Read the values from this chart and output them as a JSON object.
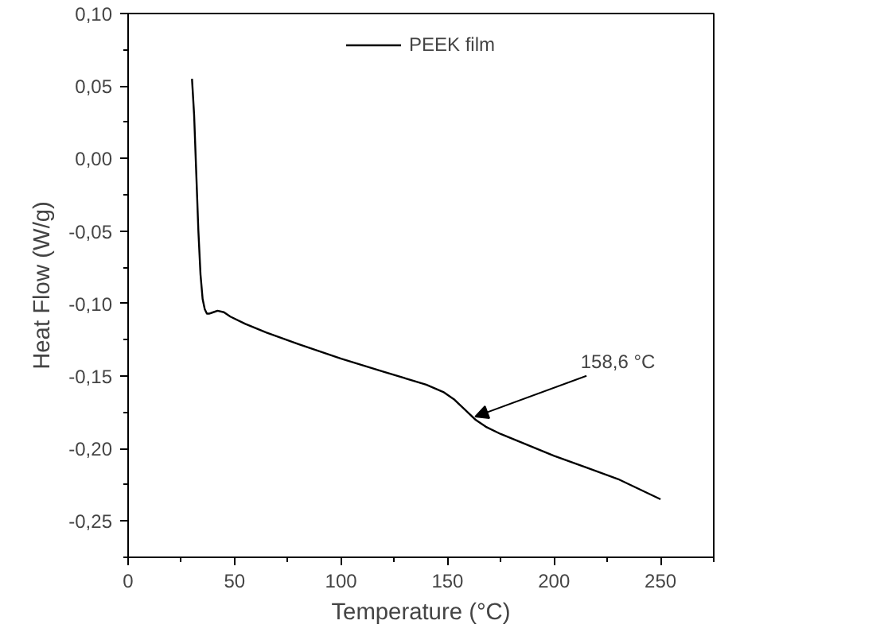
{
  "chart_data": {
    "type": "line",
    "xlabel": "Temperature (°C)",
    "ylabel": "Heat Flow (W/g)",
    "xlim": [
      0,
      275
    ],
    "xticks": [
      0,
      50,
      100,
      150,
      200,
      250
    ],
    "ylim": [
      -0.275,
      0.1
    ],
    "yticks": [
      {
        "value": -0.25,
        "label": "-0,25"
      },
      {
        "value": -0.2,
        "label": "-0,20"
      },
      {
        "value": -0.15,
        "label": "-0,15"
      },
      {
        "value": -0.1,
        "label": "-0,10"
      },
      {
        "value": -0.05,
        "label": "-0,05"
      },
      {
        "value": 0,
        "label": "0,00"
      },
      {
        "value": 0.05,
        "label": "0,05"
      },
      {
        "value": 0.1,
        "label": "0,10"
      }
    ],
    "grid": false,
    "legend": "top",
    "marker": "none",
    "line_style": "solid",
    "series": [
      {
        "name": "PEEK film",
        "color": "#000000",
        "x": [
          30,
          31,
          32,
          33,
          34,
          35,
          36,
          37,
          38,
          40,
          42,
          45,
          48,
          55,
          65,
          80,
          100,
          120,
          140,
          148,
          153,
          158,
          163,
          168,
          175,
          185,
          200,
          215,
          230,
          240,
          250
        ],
        "values": [
          0.055,
          0.03,
          -0.01,
          -0.05,
          -0.08,
          -0.097,
          -0.104,
          -0.107,
          -0.107,
          -0.106,
          -0.105,
          -0.106,
          -0.109,
          -0.114,
          -0.12,
          -0.128,
          -0.138,
          -0.147,
          -0.156,
          -0.161,
          -0.166,
          -0.173,
          -0.18,
          -0.185,
          -0.19,
          -0.196,
          -0.205,
          -0.213,
          -0.221,
          -0.228,
          -0.235
        ]
      }
    ],
    "annotations": [
      {
        "text": "158,6 °C",
        "x": 163,
        "y": -0.178
      }
    ]
  }
}
